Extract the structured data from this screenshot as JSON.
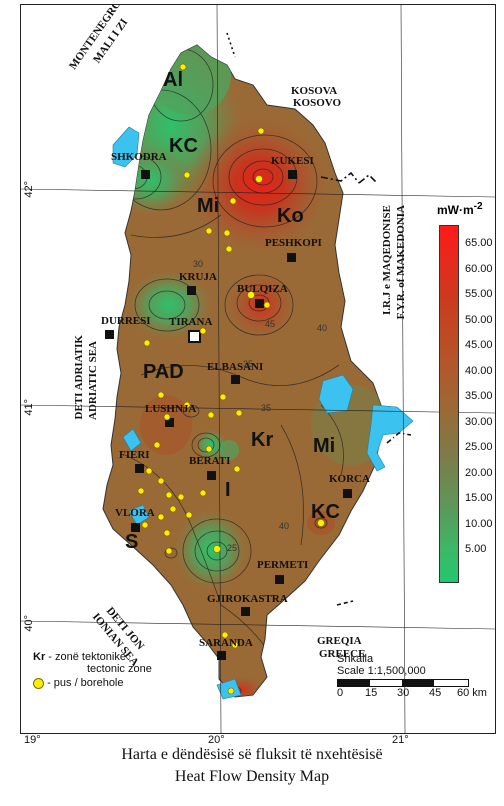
{
  "cities": {
    "shkodra": "SHKODRA",
    "kukesi": "KUKESI",
    "peshkopi": "PESHKOPI",
    "kruja": "KRUJA",
    "bulqiza": "BULQIZA",
    "durresi": "DURRESI",
    "tirana": "TIRANA",
    "elbasani": "ELBASANI",
    "lushnja": "LUSHNJA",
    "fieri": "FIERI",
    "berati": "BERATI",
    "korca": "KORCA",
    "vlora": "VLORA",
    "permeti": "PERMETI",
    "gjirokastra": "GJIROKASTRA",
    "saranda": "SARANDA"
  },
  "zones": {
    "al": "Al",
    "kc_north": "KC",
    "ko": "Ko",
    "mi_north": "Mi",
    "pad": "PAD",
    "kr": "Kr",
    "mi_south": "Mi",
    "i": "I",
    "kc_south": "KC",
    "s": "S"
  },
  "countries": {
    "montenegro_al": "MALI I ZI",
    "montenegro_en": "MONTENEGRO",
    "kosovo_al": "KOSOVA",
    "kosovo_en": "KOSOVO",
    "macedonia_al": "I.R.J e MAQEDONISE",
    "macedonia_en": "F.Y.R. of MAKEDONIA",
    "greece_al": "GREQIA",
    "greece_en": "GREECE"
  },
  "seas": {
    "adriatic_al": "DETI ADRIATIK",
    "adriatic_en": "ADRIATIC SEA",
    "ionian_al": "DETI JON",
    "ionian_en": "IONIAN SEA"
  },
  "coordinates": {
    "lat_42": "42°",
    "lat_41": "41°",
    "lat_40": "40°",
    "lon_19": "19°",
    "lon_20": "20°",
    "lon_21": "21°"
  },
  "legend": {
    "unit": "mW·m",
    "unit_exp": "-2",
    "ticks": [
      "65.00",
      "60.00",
      "55.00",
      "50.00",
      "45.00",
      "40.00",
      "35.00",
      "30.00",
      "25.00",
      "20.00",
      "15.00",
      "10.00",
      "5.00"
    ]
  },
  "zone_legend": {
    "symbol": "Kr",
    "text_al": "- zonë tektonike",
    "text_en": "tectonic zone",
    "borehole": "- pus / borehole"
  },
  "scale": {
    "title_al": "Shkalla",
    "title_en": "Scale 1:1,500,000",
    "marks": [
      "0",
      "15",
      "30",
      "45",
      "60 km"
    ]
  },
  "caption": {
    "line1": "Harta e dëndësisë së fluksit të nxehtësisë",
    "line2": "Heat Flow Density Map"
  },
  "contour_labels": {
    "c25a": "25",
    "c30a": "30",
    "c35a": "35",
    "c40a": "40",
    "c45a": "45",
    "c35b": "35",
    "c40b": "40"
  },
  "colors": {
    "green": "#3fb566",
    "brown": "#9a6a36",
    "red": "#e0281e",
    "water": "#3cc2ee",
    "borehole": "#ffee00"
  }
}
